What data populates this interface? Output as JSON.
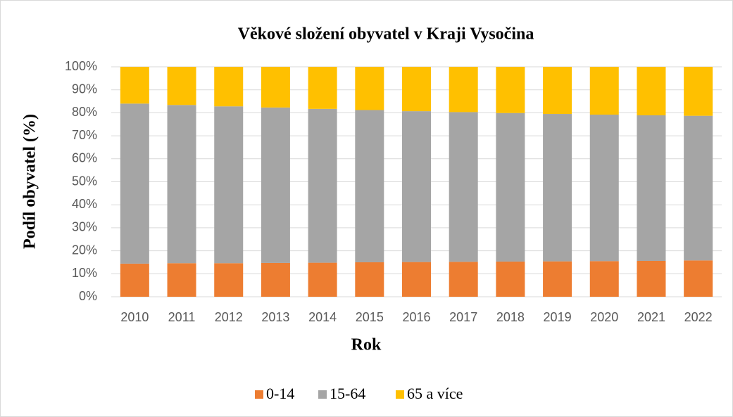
{
  "chart_data": {
    "type": "stacked_bar_100",
    "title": "Věkové složení obyvatel v Kraji Vysočina",
    "x_label": "Rok",
    "y_label": "Podíl obyvatel (%)",
    "categories": [
      "2010",
      "2011",
      "2012",
      "2013",
      "2014",
      "2015",
      "2016",
      "2017",
      "2018",
      "2019",
      "2020",
      "2021",
      "2022"
    ],
    "series": [
      {
        "name": "0-14",
        "color": "#ed7d31",
        "values": [
          14.4,
          14.6,
          14.6,
          14.7,
          14.8,
          15.0,
          15.1,
          15.2,
          15.3,
          15.4,
          15.5,
          15.6,
          15.8
        ]
      },
      {
        "name": "15-64",
        "color": "#a5a5a5",
        "values": [
          69.6,
          68.8,
          68.2,
          67.6,
          66.9,
          66.2,
          65.6,
          65.1,
          64.6,
          64.1,
          63.7,
          63.3,
          62.9
        ]
      },
      {
        "name": "65 a více",
        "color": "#ffc000",
        "values": [
          16.0,
          16.6,
          17.2,
          17.7,
          18.3,
          18.8,
          19.3,
          19.7,
          20.1,
          20.5,
          20.8,
          21.1,
          21.3
        ]
      }
    ],
    "ylim": [
      0,
      100
    ],
    "yticks": [
      {
        "value": 0,
        "label": "0%"
      },
      {
        "value": 10,
        "label": "10%"
      },
      {
        "value": 20,
        "label": "20%"
      },
      {
        "value": 30,
        "label": "30%"
      },
      {
        "value": 40,
        "label": "40%"
      },
      {
        "value": 50,
        "label": "50%"
      },
      {
        "value": 60,
        "label": "60%"
      },
      {
        "value": 70,
        "label": "70%"
      },
      {
        "value": 80,
        "label": "80%"
      },
      {
        "value": 90,
        "label": "90%"
      },
      {
        "value": 100,
        "label": "100%"
      }
    ],
    "grid": true,
    "legend": "bottom"
  }
}
